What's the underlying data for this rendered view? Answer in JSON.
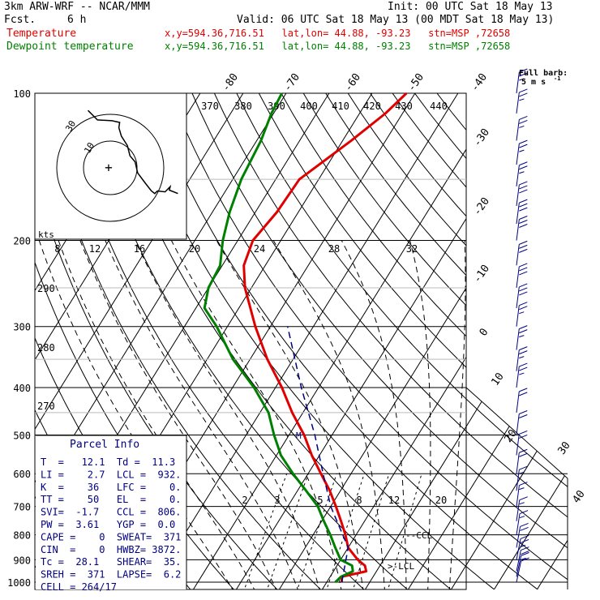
{
  "header": {
    "model": "3km ARW-WRF -- NCAR/MMM",
    "fcst_label": "Fcst.",
    "fcst_value": "6 h",
    "init": "Init: 00 UTC Sat 18 May 13",
    "valid": "Valid: 06 UTC Sat 18 May 13 (00 MDT Sat 18 May 13)",
    "temp_label": "Temperature",
    "temp_info": "x,y=594.36,716.51   lat,lon= 44.88, -93.23   stn=MSP ,72658",
    "dew_label": "Dewpoint temperature",
    "dew_info": "x,y=594.36,716.51   lat,lon= 44.88, -93.23   stn=MSP ,72658",
    "full_barb": "Full barb:",
    "full_barb_unit": "5 m s",
    "full_barb_exp": "-1"
  },
  "colors": {
    "temperature": "#e00000",
    "dewpoint": "#008000",
    "parcel": "#000080",
    "barbs": "#000080"
  },
  "chart_data": {
    "type": "line",
    "plot": "skew-t log-p",
    "pressure_levels": [
      100,
      200,
      300,
      400,
      500,
      600,
      700,
      800,
      900,
      1000
    ],
    "top_isotherm_labels": [
      "-80",
      "-70",
      "-60",
      "-50",
      "-40"
    ],
    "right_isotherm_labels": [
      "-30",
      "-20",
      "-10",
      "0",
      "10",
      "20",
      "30",
      "40"
    ],
    "theta_labels": [
      "370",
      "380",
      "390",
      "400",
      "410",
      "420",
      "430",
      "440"
    ],
    "left_theta_labels": [
      "290",
      "280",
      "270"
    ],
    "mixing_ratio_labels": [
      "2",
      "3",
      "5",
      "8",
      "12",
      "20"
    ],
    "hodograph": {
      "unit_label": "kts",
      "ring_labels": [
        "10",
        "30"
      ],
      "speed_axis_labels": [
        "8",
        "12",
        "16",
        "20",
        "24",
        "28",
        "32"
      ],
      "trace": [
        [
          -2.6,
          -6.7
        ],
        [
          -1.5,
          -5.6
        ],
        [
          0.2,
          -5.5
        ],
        [
          1.1,
          -5.3
        ],
        [
          1.0,
          -4.7
        ],
        [
          1.3,
          -3.7
        ],
        [
          2.0,
          -2.6
        ],
        [
          2.3,
          -1.4
        ],
        [
          2.9,
          -0.7
        ],
        [
          3.2,
          0.6
        ],
        [
          4.1,
          1.8
        ],
        [
          4.8,
          2.7
        ],
        [
          5.2,
          3.0
        ],
        [
          5.5,
          2.7
        ],
        [
          6.4,
          2.8
        ],
        [
          7.0,
          2.2
        ],
        [
          6.9,
          2.6
        ],
        [
          7.9,
          3.0
        ]
      ]
    },
    "series": [
      {
        "name": "Temperature",
        "points": [
          [
            1000,
            13.5
          ],
          [
            975,
            12.6
          ],
          [
            950,
            17.6
          ],
          [
            925,
            16.5
          ],
          [
            900,
            14.0
          ],
          [
            850,
            10.0
          ],
          [
            800,
            7.5
          ],
          [
            750,
            4.5
          ],
          [
            700,
            1.2
          ],
          [
            650,
            -2.5
          ],
          [
            600,
            -7.0
          ],
          [
            550,
            -11.8
          ],
          [
            500,
            -16.5
          ],
          [
            450,
            -22.5
          ],
          [
            400,
            -28.5
          ],
          [
            350,
            -36.0
          ],
          [
            300,
            -43.5
          ],
          [
            250,
            -51.5
          ],
          [
            225,
            -55.0
          ],
          [
            200,
            -56.5
          ],
          [
            175,
            -55.0
          ],
          [
            150,
            -54.5
          ],
          [
            125,
            -48.0
          ],
          [
            110,
            -44.0
          ],
          [
            100,
            -42.0
          ]
        ]
      },
      {
        "name": "Dewpoint temperature",
        "points": [
          [
            1000,
            12.0
          ],
          [
            975,
            12.5
          ],
          [
            950,
            14.5
          ],
          [
            925,
            13.5
          ],
          [
            900,
            10.0
          ],
          [
            850,
            7.0
          ],
          [
            800,
            4.0
          ],
          [
            750,
            0.5
          ],
          [
            700,
            -3.0
          ],
          [
            650,
            -8.0
          ],
          [
            600,
            -13.5
          ],
          [
            550,
            -19.0
          ],
          [
            500,
            -23.5
          ],
          [
            450,
            -28.0
          ],
          [
            400,
            -35.0
          ],
          [
            350,
            -44.0
          ],
          [
            300,
            -52.5
          ],
          [
            275,
            -58.0
          ],
          [
            250,
            -60.0
          ],
          [
            225,
            -60.5
          ],
          [
            200,
            -63.5
          ],
          [
            175,
            -66.0
          ],
          [
            150,
            -68.0
          ],
          [
            125,
            -69.0
          ],
          [
            110,
            -70.5
          ],
          [
            100,
            -71.0
          ]
        ]
      },
      {
        "name": "Parcel",
        "points": [
          [
            1000,
            13.5
          ],
          [
            850,
            10.0
          ],
          [
            700,
            0.0
          ],
          [
            600,
            -6.5
          ],
          [
            500,
            -14.0
          ],
          [
            400,
            -24.0
          ],
          [
            300,
            -36.0
          ]
        ]
      }
    ],
    "level_marks": [
      "LCL",
      "CCL"
    ],
    "parcel_marker": "M"
  },
  "parcel_info": {
    "title": "Parcel Info",
    "rows": [
      "T  =   12.1  Td =  11.3",
      "LI =    2.7  LCL =  932.",
      "K  =    36   LFC =    0.",
      "TT =    50   EL  =    0.",
      "SVI=  -1.7   CCL =  806.",
      "PW =  3.61   YGP =  0.0",
      "CAPE =    0  SWEAT=  371",
      "CIN  =    0  HWBZ= 3872.",
      "Tc =  28.1   SHEAR=  35.",
      "SREH =  371  LAPSE=  6.2",
      "CELL = 264/17"
    ]
  },
  "wind_barbs": [
    {
      "p": 100,
      "speed": 25,
      "dir": 262
    },
    {
      "p": 110,
      "speed": 25,
      "dir": 262
    },
    {
      "p": 125,
      "speed": 25,
      "dir": 262
    },
    {
      "p": 140,
      "speed": 25,
      "dir": 262
    },
    {
      "p": 155,
      "speed": 25,
      "dir": 262
    },
    {
      "p": 170,
      "speed": 30,
      "dir": 262
    },
    {
      "p": 185,
      "speed": 30,
      "dir": 262
    },
    {
      "p": 200,
      "speed": 30,
      "dir": 262
    },
    {
      "p": 225,
      "speed": 30,
      "dir": 264
    },
    {
      "p": 250,
      "speed": 30,
      "dir": 264
    },
    {
      "p": 275,
      "speed": 30,
      "dir": 264
    },
    {
      "p": 300,
      "speed": 25,
      "dir": 265
    },
    {
      "p": 335,
      "speed": 25,
      "dir": 265
    },
    {
      "p": 370,
      "speed": 25,
      "dir": 265
    },
    {
      "p": 400,
      "speed": 25,
      "dir": 265
    },
    {
      "p": 450,
      "speed": 20,
      "dir": 265
    },
    {
      "p": 500,
      "speed": 20,
      "dir": 265
    },
    {
      "p": 550,
      "speed": 20,
      "dir": 265
    },
    {
      "p": 600,
      "speed": 20,
      "dir": 264
    },
    {
      "p": 650,
      "speed": 15,
      "dir": 262
    },
    {
      "p": 700,
      "speed": 15,
      "dir": 260
    },
    {
      "p": 750,
      "speed": 15,
      "dir": 250
    },
    {
      "p": 800,
      "speed": 15,
      "dir": 240
    },
    {
      "p": 850,
      "speed": 20,
      "dir": 220
    },
    {
      "p": 900,
      "speed": 25,
      "dir": 200
    },
    {
      "p": 950,
      "speed": 20,
      "dir": 190
    },
    {
      "p": 975,
      "speed": 15,
      "dir": 180
    },
    {
      "p": 1000,
      "speed": 10,
      "dir": 180
    }
  ]
}
